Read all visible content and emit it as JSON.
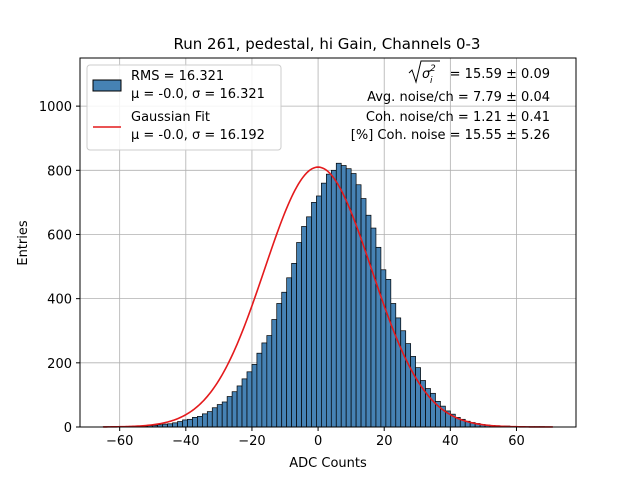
{
  "chart_data": {
    "type": "bar",
    "title": "Run 261, pedestal, hi Gain, Channels 0-3",
    "xlabel": "ADC Counts",
    "ylabel": "Entries",
    "xlim": [
      -72,
      78
    ],
    "ylim": [
      0,
      1150
    ],
    "xticks": [
      -60,
      -40,
      -20,
      0,
      20,
      40,
      60
    ],
    "yticks": [
      0,
      200,
      400,
      600,
      800,
      1000
    ],
    "grid": true,
    "legend_position": "top-left",
    "histogram": {
      "name": "RMS = 16.321",
      "stats": "μ = -0.0, σ = 16.321",
      "color": "#4682b4",
      "edgecolor": "#000000",
      "bin_width": 1.5,
      "bin_start": -65,
      "values": [
        1,
        1,
        1,
        1,
        1,
        2,
        2,
        3,
        3,
        4,
        5,
        7,
        9,
        10,
        13,
        17,
        22,
        24,
        30,
        33,
        41,
        48,
        60,
        70,
        78,
        95,
        110,
        128,
        150,
        172,
        195,
        230,
        262,
        285,
        335,
        385,
        420,
        465,
        510,
        575,
        625,
        655,
        700,
        720,
        760,
        788,
        800,
        822,
        815,
        805,
        790,
        755,
        712,
        660,
        620,
        560,
        490,
        460,
        385,
        340,
        300,
        260,
        220,
        185,
        145,
        120,
        105,
        80,
        65,
        50,
        40,
        30,
        24,
        18,
        14,
        11,
        8,
        6,
        5,
        4,
        3,
        3,
        2,
        2,
        1,
        1,
        1,
        1,
        1,
        0
      ]
    },
    "fit": {
      "name": "Gaussian Fit",
      "stats": "μ = -0.0, σ = 16.192",
      "color": "#e41a1c",
      "mu": 0.0,
      "sigma": 16.192,
      "amplitude": 810,
      "x_range": [
        -65,
        71
      ]
    },
    "annotations": {
      "line1_suffix": " = 15.59 ± 0.09",
      "line2": "Avg. noise/ch = 7.79 ± 0.04",
      "line3": "Coh. noise/ch = 1.21 ± 0.41",
      "line4": "[%] Coh. noise = 15.55 ± 5.26"
    }
  }
}
